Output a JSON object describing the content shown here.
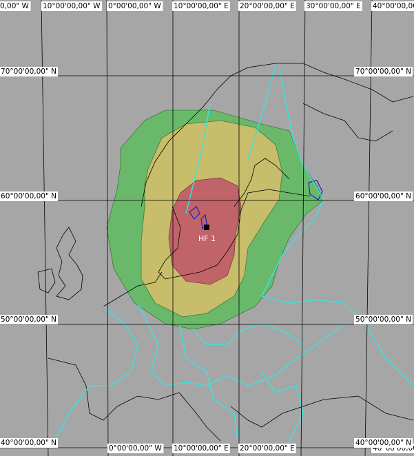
{
  "graticule_labels": {
    "top": [
      "0,00\" W",
      "10°00'00,00\" W",
      "0°00'00,00\" W",
      "10°00'00,00\" E",
      "20°00'00,00\" E",
      "30°00'00,00\" E",
      "40°00'00,00\" E"
    ],
    "bottom": [
      "0°00'00,00\" W",
      "10°00'00,00\" E",
      "20°00'00,00\" E",
      "40°00'00,00\" E"
    ],
    "left": [
      "70°00'00,00\" N",
      "60°00'00,00\" N",
      "50°00'00,00\" N",
      "40°00'00,00\" N"
    ],
    "right": [
      "70°00'00,00\" N",
      "60°00'00,00\" N",
      "50°00'00,00\" N",
      "40°00'00,00\" N"
    ]
  },
  "marker": {
    "label": "HF 1"
  }
}
